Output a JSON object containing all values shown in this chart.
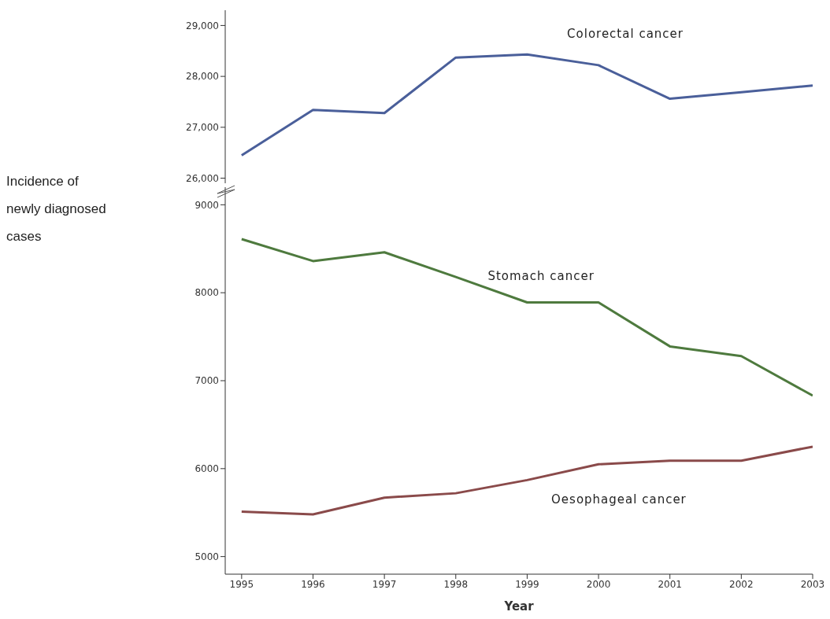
{
  "chart_data": [
    {
      "type": "line",
      "x": [
        1995,
        1996,
        1997,
        1998,
        1999,
        2000,
        2001,
        2002,
        2003
      ],
      "xlim": [
        1994.77,
        2003
      ],
      "xticks": [
        1995,
        1996,
        1997,
        1998,
        1999,
        2000,
        2001,
        2002,
        2003
      ],
      "ylim": [
        25900,
        29300
      ],
      "yticks": [
        {
          "value": 26000,
          "label": "26,000"
        },
        {
          "value": 27000,
          "label": "27,000"
        },
        {
          "value": 28000,
          "label": "28,000"
        },
        {
          "value": 29000,
          "label": "29,000"
        }
      ],
      "tick_labels": "y",
      "grid": false,
      "legend": false,
      "marker": "none",
      "line_style": "solid",
      "series": [
        {
          "name": "Colorectal cancer",
          "color": "#4a5f9a",
          "values": [
            26450,
            27340,
            27280,
            28370,
            28430,
            28220,
            27560,
            27690,
            27820
          ]
        }
      ]
    },
    {
      "type": "line",
      "x": [
        1995,
        1996,
        1997,
        1998,
        1999,
        2000,
        2001,
        2002,
        2003
      ],
      "xlim": [
        1994.77,
        2003
      ],
      "xticks": [
        1995,
        1996,
        1997,
        1998,
        1999,
        2000,
        2001,
        2002,
        2003
      ],
      "ylim": [
        4800,
        9200
      ],
      "yticks": [
        5000,
        6000,
        7000,
        8000,
        9000
      ],
      "xlabel": "Year",
      "ylabel": "Incidence of newly diagnosed cases",
      "grid": false,
      "legend": false,
      "marker": "none",
      "line_style": "solid",
      "series": [
        {
          "name": "Stomach cancer",
          "color": "#4e7a3e",
          "values": [
            8610,
            8360,
            8460,
            8180,
            7890,
            7890,
            7390,
            7280,
            6830
          ]
        },
        {
          "name": "Oesophageal cancer",
          "color": "#8a4a4a",
          "values": [
            5510,
            5480,
            5670,
            5720,
            5870,
            6050,
            6090,
            6090,
            6250
          ]
        }
      ]
    }
  ]
}
